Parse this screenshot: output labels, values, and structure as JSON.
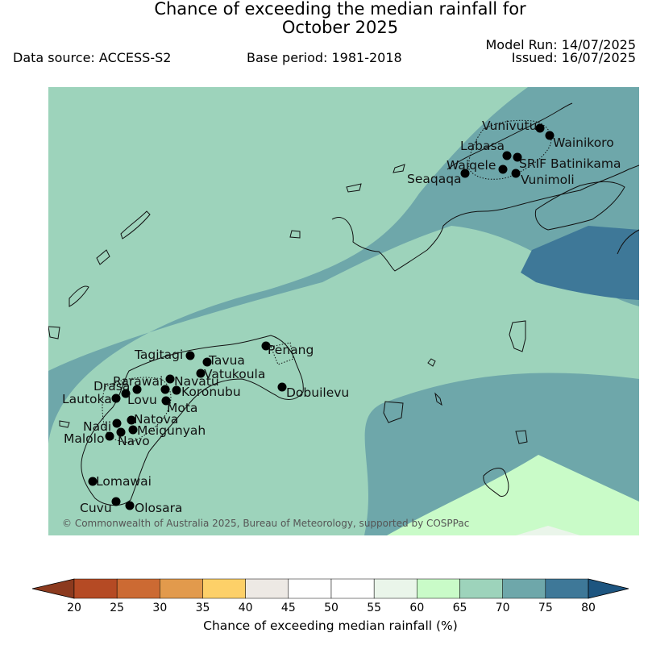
{
  "header": {
    "title_line1": "Chance of exceeding the median rainfall for",
    "title_line2": "October 2025",
    "data_source": "Data source: ACCESS-S2",
    "base_period": "Base period: 1981-2018",
    "model_run": "Model Run: 14/07/2025",
    "issued": "Issued: 16/07/2025"
  },
  "map": {
    "copyright": "© Commonwealth of Australia 2025, Bureau of Meteorology, supported by COSPPac",
    "stations": [
      "Vunivutu",
      "Wainikoro",
      "Labasa",
      "SRIF Batinikama",
      "Waiqele",
      "Seaqaqa",
      "Vunimoli",
      "Tagitagi",
      "Tavua",
      "Penang",
      "Vatukoula",
      "Rarawai",
      "Navatu",
      "Koronubu",
      "Drasa",
      "Lautoka",
      "Lovu",
      "Mota",
      "Dobuilevu",
      "Natova",
      "Nadi",
      "Meigunyah",
      "Malolo",
      "Navo",
      "Lomawai",
      "Cuvu",
      "Olosara"
    ]
  },
  "colorbar": {
    "title": "Chance of exceeding median rainfall (%)",
    "ticks": [
      "20",
      "25",
      "30",
      "35",
      "40",
      "45",
      "50",
      "55",
      "60",
      "65",
      "70",
      "75",
      "80"
    ],
    "colors": [
      "#8c3a1e",
      "#b54a24",
      "#cc6a33",
      "#e29a4c",
      "#fdd068",
      "#ede9e4",
      "#ffffff",
      "#ffffff",
      "#eaf5ea",
      "#c9fbc8",
      "#9dd3bb",
      "#6ea7aa",
      "#3e7898",
      "#1d5580"
    ]
  }
}
